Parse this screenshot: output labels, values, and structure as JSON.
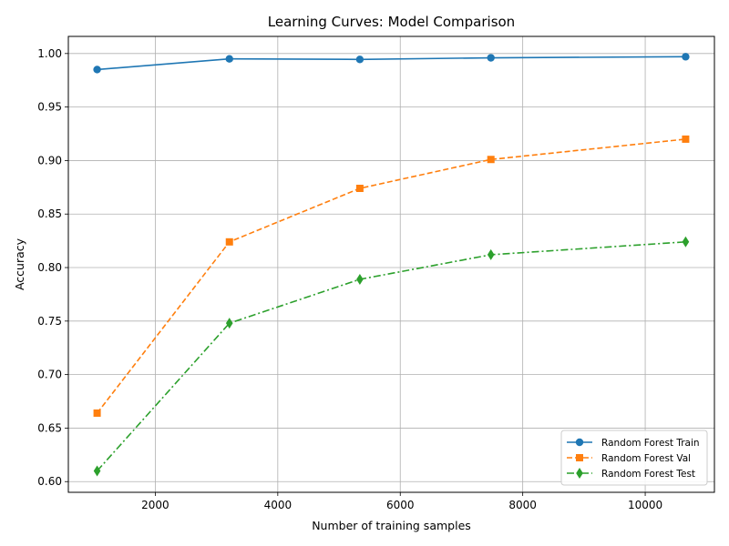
{
  "chart_data": {
    "type": "line",
    "title": "Learning Curves: Model Comparison",
    "xlabel": "Number of training samples",
    "ylabel": "Accuracy",
    "x": [
      1050,
      3210,
      5340,
      7480,
      10660
    ],
    "xlim": [
      580,
      11130
    ],
    "ylim": [
      0.59,
      1.016
    ],
    "xticks": [
      2000,
      4000,
      6000,
      8000,
      10000
    ],
    "xtick_labels": [
      "2000",
      "4000",
      "6000",
      "8000",
      "10000"
    ],
    "yticks": [
      0.6,
      0.65,
      0.7,
      0.75,
      0.8,
      0.85,
      0.9,
      0.95,
      1.0
    ],
    "ytick_labels": [
      "0.60",
      "0.65",
      "0.70",
      "0.75",
      "0.80",
      "0.85",
      "0.90",
      "0.95",
      "1.00"
    ],
    "grid": true,
    "legend_position": "bottom-right",
    "series": [
      {
        "name": "Random Forest Train",
        "color": "#1f77b4",
        "marker": "circle",
        "linestyle": "solid",
        "values": [
          0.985,
          0.995,
          0.9945,
          0.996,
          0.997
        ]
      },
      {
        "name": "Random Forest Val",
        "color": "#ff7f0e",
        "marker": "square",
        "linestyle": "dashed",
        "values": [
          0.664,
          0.824,
          0.874,
          0.901,
          0.92
        ]
      },
      {
        "name": "Random Forest Test",
        "color": "#2ca02c",
        "marker": "diamond",
        "linestyle": "dashdot",
        "values": [
          0.61,
          0.748,
          0.789,
          0.812,
          0.824
        ]
      }
    ]
  }
}
